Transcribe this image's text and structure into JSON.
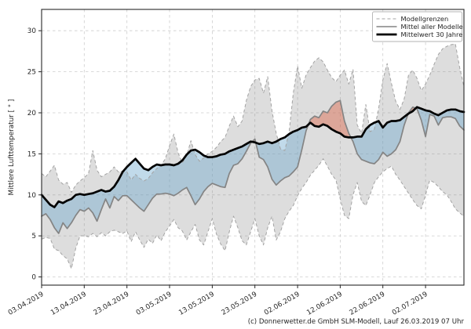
{
  "caption": "(c) Donnerwetter.de GmbH SLM-Modell, Lauf 26.03.2019 07 Uhr",
  "chart_data": {
    "type": "line",
    "title": "",
    "xlabel": "",
    "ylabel": "Mittlere Lufttemperatur [ ° ]",
    "x_unit": "daily values, day index 0 = 03.04.2019",
    "xlim": [
      0,
      99
    ],
    "ylim": [
      -1,
      32.6
    ],
    "grid": true,
    "y_ticks": [
      0,
      5,
      10,
      15,
      20,
      25,
      30
    ],
    "x_tick_days": [
      0,
      10,
      20,
      30,
      40,
      50,
      60,
      70,
      80,
      90
    ],
    "x_tick_labels": [
      "03.04.2019",
      "13.04.2019",
      "23.04.2019",
      "03.05.2019",
      "13.05.2019",
      "23.05.2019",
      "02.06.2019",
      "12.06.2019",
      "22.06.2019",
      "02.07.2019"
    ],
    "legend": {
      "position": "top-right",
      "entries": [
        {
          "label": "Modellgrenzen",
          "style": "dashed-gray"
        },
        {
          "label": "Mittel aller Modelle",
          "style": "solid-gray"
        },
        {
          "label": "Mittelwert 30 Jahre",
          "style": "solid-black-thick"
        }
      ]
    },
    "colors": {
      "band_fill": "rgba(130,130,130,0.27)",
      "cooler_fill": "rgba(108,166,205,0.42)",
      "warmer_fill": "rgba(220,90,60,0.42)",
      "band_edge": "#a3a3a3",
      "model_mean_line": "#848484",
      "mean30_line": "#000000",
      "grid_line": "#cdcdcd",
      "spine": "#262626"
    },
    "series": [
      {
        "name": "Modellgrenzen (obere Grenze)",
        "role": "band_max",
        "values": [
          12.6,
          12.2,
          12.9,
          13.6,
          11.8,
          11.3,
          11.5,
          10.3,
          11.2,
          11.7,
          12.1,
          12.6,
          15.4,
          13.0,
          12.2,
          12.5,
          12.8,
          13.4,
          12.8,
          12.9,
          12.8,
          11.8,
          12.5,
          12.0,
          11.7,
          12.0,
          12.7,
          13.2,
          13.6,
          14.4,
          16.0,
          17.4,
          15.1,
          13.9,
          14.8,
          16.6,
          14.9,
          14.1,
          14.5,
          15.0,
          15.3,
          15.8,
          16.5,
          17.0,
          18.4,
          19.6,
          18.3,
          19.0,
          21.5,
          23.2,
          24.0,
          24.2,
          22.4,
          24.4,
          20.2,
          17.5,
          15.6,
          15.4,
          17.6,
          22.4,
          25.7,
          23.0,
          24.6,
          25.5,
          26.3,
          26.7,
          26.2,
          25.2,
          24.3,
          23.8,
          24.6,
          25.2,
          23.5,
          25.3,
          18.5,
          17.5,
          21.0,
          17.7,
          18.0,
          20.5,
          24.0,
          26.0,
          23.6,
          21.4,
          20.4,
          21.7,
          24.6,
          25.2,
          24.2,
          22.7,
          23.5,
          24.6,
          25.9,
          27.1,
          27.8,
          28.1,
          28.3,
          28.4,
          25.5,
          23.2
        ]
      },
      {
        "name": "Modellgrenzen (untere Grenze)",
        "role": "band_min",
        "values": [
          4.6,
          4.8,
          4.7,
          3.4,
          3.2,
          2.6,
          2.2,
          1.0,
          3.5,
          5.0,
          5.0,
          4.9,
          5.3,
          4.9,
          5.4,
          5.0,
          5.5,
          5.7,
          5.5,
          5.3,
          5.6,
          4.3,
          5.5,
          4.5,
          3.6,
          4.6,
          4.1,
          5.1,
          4.4,
          5.5,
          6.2,
          7.0,
          6.0,
          5.6,
          4.5,
          5.5,
          6.4,
          4.5,
          3.9,
          5.5,
          7.1,
          5.2,
          4.0,
          3.2,
          5.5,
          7.4,
          6.0,
          4.4,
          3.9,
          5.5,
          7.1,
          5.0,
          3.9,
          6.0,
          7.4,
          4.5,
          5.5,
          7.1,
          8.0,
          8.7,
          9.9,
          10.8,
          11.5,
          12.4,
          13.0,
          13.6,
          14.4,
          13.5,
          12.5,
          11.8,
          9.5,
          7.5,
          7.1,
          10.0,
          11.5,
          9.2,
          8.7,
          10.0,
          11.5,
          12.2,
          12.8,
          13.2,
          13.5,
          12.5,
          11.8,
          11.0,
          10.2,
          9.4,
          8.7,
          8.3,
          10.0,
          11.8,
          11.5,
          11.0,
          10.4,
          10.0,
          9.2,
          8.3,
          7.8,
          7.4
        ]
      },
      {
        "name": "Mittel aller Modelle",
        "role": "model_mean",
        "values": [
          7.4,
          7.7,
          7.0,
          6.0,
          5.3,
          6.6,
          5.9,
          6.6,
          7.5,
          8.2,
          8.0,
          8.4,
          7.8,
          6.8,
          8.2,
          9.5,
          8.4,
          9.8,
          9.3,
          9.9,
          9.9,
          9.4,
          8.9,
          8.4,
          8.0,
          8.8,
          9.6,
          10.1,
          10.1,
          10.2,
          10.1,
          9.9,
          10.2,
          10.6,
          10.9,
          9.9,
          8.8,
          9.5,
          10.4,
          11.0,
          11.4,
          11.2,
          11.0,
          10.9,
          12.6,
          13.6,
          13.8,
          14.4,
          15.3,
          16.3,
          16.8,
          14.6,
          14.3,
          13.4,
          11.9,
          11.2,
          11.7,
          12.1,
          12.3,
          12.8,
          13.4,
          15.5,
          17.8,
          19.2,
          19.6,
          19.4,
          20.2,
          20.0,
          20.8,
          21.3,
          21.5,
          19.0,
          17.5,
          16.5,
          15.0,
          14.3,
          14.1,
          13.9,
          13.8,
          14.3,
          15.2,
          14.7,
          15.0,
          15.5,
          16.5,
          18.5,
          20.0,
          20.7,
          20.5,
          19.1,
          17.1,
          19.8,
          19.6,
          18.5,
          19.4,
          19.5,
          19.5,
          19.3,
          18.4,
          17.9
        ]
      },
      {
        "name": "Mittelwert 30 Jahre",
        "role": "mean_30y",
        "values": [
          10.0,
          9.4,
          8.8,
          8.5,
          9.2,
          9.0,
          9.3,
          9.5,
          10.0,
          10.1,
          10.0,
          10.1,
          10.2,
          10.4,
          10.6,
          10.4,
          10.5,
          11.0,
          11.8,
          12.8,
          13.4,
          13.9,
          14.4,
          13.8,
          13.2,
          13.0,
          13.4,
          13.7,
          13.6,
          13.7,
          13.7,
          13.6,
          13.8,
          14.2,
          14.9,
          15.4,
          15.5,
          15.2,
          14.8,
          14.6,
          14.6,
          14.7,
          14.9,
          15.0,
          15.3,
          15.5,
          15.7,
          15.9,
          16.2,
          16.5,
          16.4,
          16.2,
          16.3,
          16.5,
          16.3,
          16.5,
          16.8,
          17.0,
          17.4,
          17.7,
          17.9,
          18.2,
          18.3,
          18.8,
          18.4,
          18.3,
          18.6,
          18.4,
          18.0,
          17.7,
          17.5,
          17.1,
          17.0,
          17.0,
          17.1,
          17.1,
          18.0,
          18.5,
          18.8,
          19.0,
          18.2,
          18.8,
          19.0,
          19.0,
          19.1,
          19.5,
          19.9,
          20.2,
          20.7,
          20.5,
          20.3,
          20.2,
          19.9,
          19.7,
          20.0,
          20.3,
          20.4,
          20.4,
          20.2,
          20.1
        ]
      }
    ]
  }
}
